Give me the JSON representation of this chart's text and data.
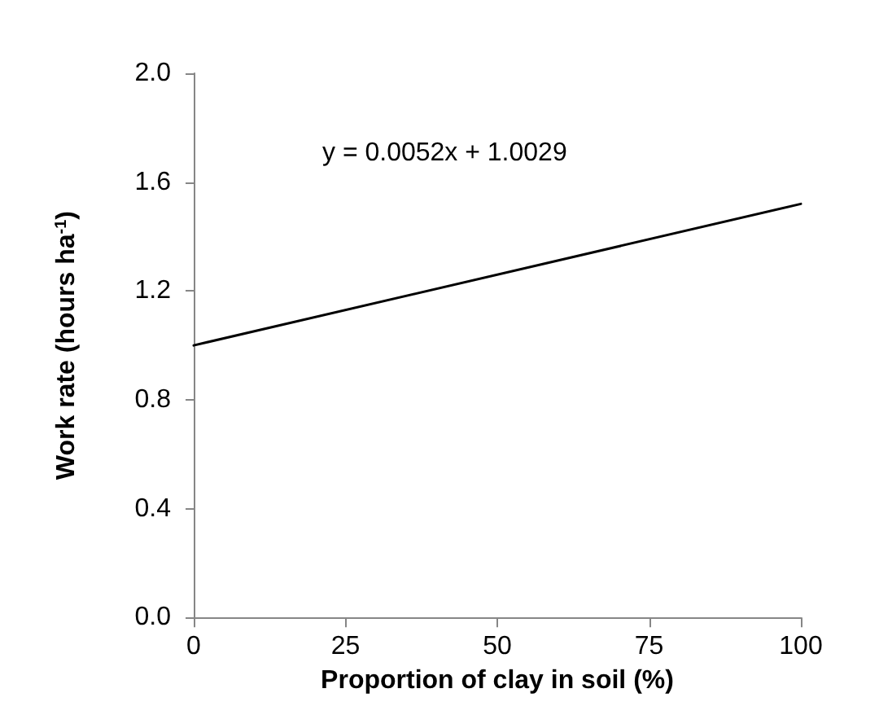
{
  "chart_data": {
    "type": "line",
    "xlabel": "Proportion of clay in soil (%)",
    "ylabel": "Work rate (hours ha$^{-1}$)",
    "x": [
      0,
      100
    ],
    "series": [
      {
        "color": "#000000",
        "values": [
          1.0,
          1.52
        ]
      }
    ],
    "xlim": [
      0,
      100
    ],
    "xticks": [
      0,
      25,
      50,
      75,
      100
    ],
    "ylim": [
      0,
      2
    ],
    "yticks": [
      {
        "value": 0,
        "label": "0.0"
      },
      {
        "value": 0.4,
        "label": "0.4"
      },
      {
        "value": 0.8,
        "label": "0.8"
      },
      {
        "value": 1.2,
        "label": "1.2"
      },
      {
        "value": 1.6,
        "label": "1.6"
      },
      {
        "value": 2,
        "label": "2.0"
      }
    ],
    "annotations": [
      "y = 0.0052x + 1.0029"
    ],
    "grid": false,
    "marker": "none",
    "line_style": "solid"
  }
}
